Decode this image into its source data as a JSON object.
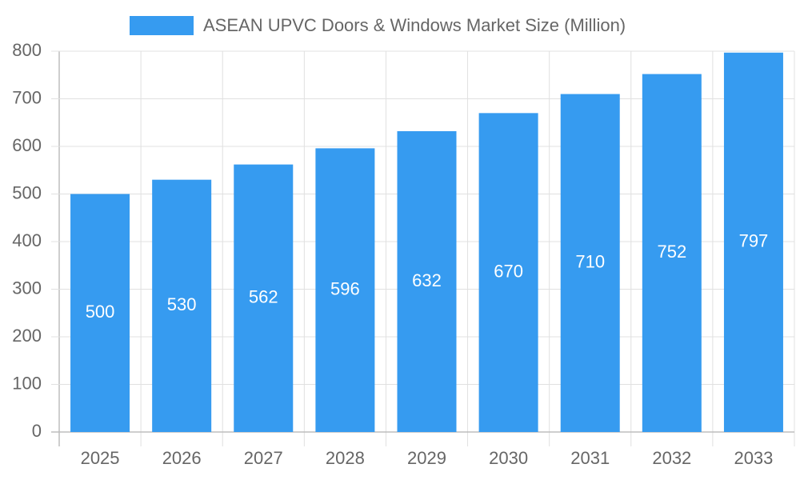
{
  "chart_data": {
    "type": "bar",
    "categories": [
      "2025",
      "2026",
      "2027",
      "2028",
      "2029",
      "2030",
      "2031",
      "2032",
      "2033"
    ],
    "series": [
      {
        "name": "ASEAN UPVC Doors & Windows Market Size (Million)",
        "color": "#369bf0",
        "values": [
          500,
          530,
          562,
          596,
          632,
          670,
          710,
          752,
          797
        ]
      }
    ],
    "ylim": [
      0,
      800
    ],
    "yticks": [
      0,
      100,
      200,
      300,
      400,
      500,
      600,
      700,
      800
    ],
    "grid": true,
    "legend": "top",
    "data_labels": true
  }
}
